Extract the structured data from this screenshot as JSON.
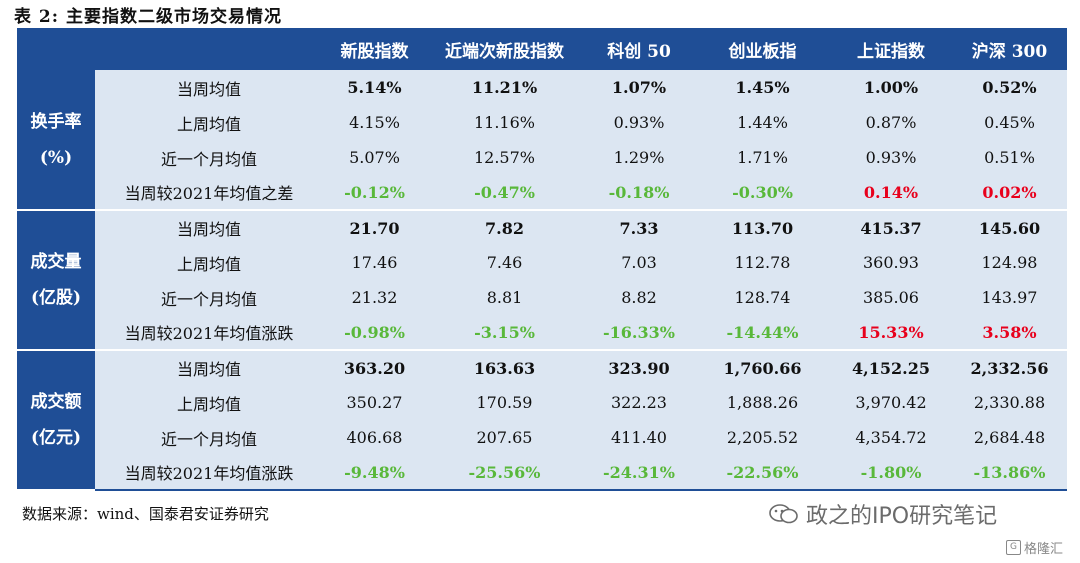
{
  "title": "表 2: 主要指数二级市场交易情况",
  "columns": [
    "新股指数",
    "近端次新股指数",
    "科创 50",
    "创业板指",
    "上证指数",
    "沪深 300"
  ],
  "groups": [
    {
      "name_line1": "换手率",
      "name_line2": "(%)",
      "rows": [
        {
          "label": "当周均值",
          "values": [
            "5.14%",
            "11.21%",
            "1.07%",
            "1.45%",
            "1.00%",
            "0.52%"
          ]
        },
        {
          "label": "上周均值",
          "values": [
            "4.15%",
            "11.16%",
            "0.93%",
            "1.44%",
            "0.87%",
            "0.45%"
          ]
        },
        {
          "label": "近一个月均值",
          "values": [
            "5.07%",
            "12.57%",
            "1.29%",
            "1.71%",
            "0.93%",
            "0.51%"
          ]
        },
        {
          "label": "当周较2021年均值之差",
          "values": [
            "-0.12%",
            "-0.47%",
            "-0.18%",
            "-0.30%",
            "0.14%",
            "0.02%"
          ]
        }
      ]
    },
    {
      "name_line1": "成交量",
      "name_line2": "(亿股)",
      "rows": [
        {
          "label": "当周均值",
          "values": [
            "21.70",
            "7.82",
            "7.33",
            "113.70",
            "415.37",
            "145.60"
          ]
        },
        {
          "label": "上周均值",
          "values": [
            "17.46",
            "7.46",
            "7.03",
            "112.78",
            "360.93",
            "124.98"
          ]
        },
        {
          "label": "近一个月均值",
          "values": [
            "21.32",
            "8.81",
            "8.82",
            "128.74",
            "385.06",
            "143.97"
          ]
        },
        {
          "label": "当周较2021年均值涨跌",
          "values": [
            "-0.98%",
            "-3.15%",
            "-16.33%",
            "-14.44%",
            "15.33%",
            "3.58%"
          ]
        }
      ]
    },
    {
      "name_line1": "成交额",
      "name_line2": "(亿元)",
      "rows": [
        {
          "label": "当周均值",
          "values": [
            "363.20",
            "163.63",
            "323.90",
            "1,760.66",
            "4,152.25",
            "2,332.56"
          ]
        },
        {
          "label": "上周均值",
          "values": [
            "350.27",
            "170.59",
            "322.23",
            "1,888.26",
            "3,970.42",
            "2,330.88"
          ]
        },
        {
          "label": "近一个月均值",
          "values": [
            "406.68",
            "207.65",
            "411.40",
            "2,205.52",
            "4,354.72",
            "2,684.48"
          ]
        },
        {
          "label": "当周较2021年均值涨跌",
          "values": [
            "-9.48%",
            "-25.56%",
            "-24.31%",
            "-22.56%",
            "-1.80%",
            "-13.86%"
          ]
        }
      ]
    }
  ],
  "source": "数据来源：wind、国泰君安证券研究",
  "watermark": "政之的IPO研究笔记",
  "logo": "格隆汇",
  "colors": {
    "header_bg": "#1f4e96",
    "row_bg": "#dce6f2",
    "positive": "#e8001c",
    "negative": "#59b83a"
  }
}
